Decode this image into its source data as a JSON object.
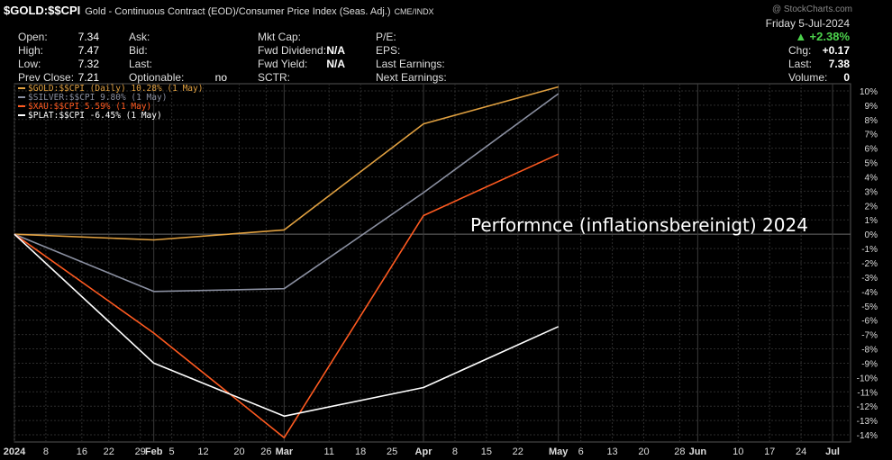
{
  "header": {
    "symbol": "$GOLD:$$CPI",
    "description": "Gold - Continuous Contract (EOD)/Consumer Price Index (Seas. Adj.)",
    "exchange": "CME/INDX",
    "watermark": "@ StockCharts.com",
    "date": "Friday  5-Jul-2024",
    "change_pct": "+2.38%",
    "stats": {
      "open": {
        "label": "Open:",
        "value": "7.34"
      },
      "high": {
        "label": "High:",
        "value": "7.47"
      },
      "low": {
        "label": "Low:",
        "value": "7.32"
      },
      "prev_close": {
        "label": "Prev Close:",
        "value": "7.21"
      },
      "ask": {
        "label": "Ask:",
        "value": ""
      },
      "bid": {
        "label": "Bid:",
        "value": ""
      },
      "last_q": {
        "label": "Last:",
        "value": ""
      },
      "optionable": {
        "label": "Optionable:",
        "value": "no"
      },
      "mkt_cap": {
        "label": "Mkt Cap:",
        "value": ""
      },
      "fwd_div": {
        "label": "Fwd Dividend:",
        "value": "N/A"
      },
      "fwd_yield": {
        "label": "Fwd Yield:",
        "value": "N/A"
      },
      "sctr": {
        "label": "SCTR:",
        "value": ""
      },
      "pe": {
        "label": "P/E:",
        "value": ""
      },
      "eps": {
        "label": "EPS:",
        "value": ""
      },
      "last_earn": {
        "label": "Last Earnings:",
        "value": ""
      },
      "next_earn": {
        "label": "Next Earnings:",
        "value": ""
      },
      "chg": {
        "label": "Chg:",
        "value": "+0.17"
      },
      "last": {
        "label": "Last:",
        "value": "7.38"
      },
      "volume": {
        "label": "Volume:",
        "value": "0"
      }
    }
  },
  "chart_data": {
    "type": "line",
    "title": "Performnce (inflationsbereinigt) 2024",
    "x": [
      "2024-01-01",
      "2024-02-01",
      "2024-03-01",
      "2024-04-01",
      "2024-05-01"
    ],
    "series": [
      {
        "name": "$GOLD:$$CPI (Daily) 10.28% (1 May)",
        "color": "#e0a040",
        "values": [
          0,
          -0.4,
          0.3,
          7.7,
          10.28
        ]
      },
      {
        "name": "$SILVER:$$CPI 9.80% (1 May)",
        "color": "#8a8fa0",
        "values": [
          0,
          -4.0,
          -3.8,
          2.9,
          9.8
        ]
      },
      {
        "name": "$XAU:$$CPI 5.59% (1 May)",
        "color": "#ff5a20",
        "values": [
          0,
          -6.9,
          -14.2,
          1.3,
          5.59
        ]
      },
      {
        "name": "$PLAT:$$CPI -6.45% (1 May)",
        "color": "#ffffff",
        "values": [
          0,
          -9.0,
          -12.7,
          -10.7,
          -6.45
        ]
      }
    ],
    "ylim": [
      -14.5,
      10.5
    ],
    "y_ticks": [
      "10%",
      "9%",
      "8%",
      "7%",
      "6%",
      "5%",
      "4%",
      "3%",
      "2%",
      "1%",
      "0%",
      "-1%",
      "-2%",
      "-3%",
      "-4%",
      "-5%",
      "-6%",
      "-7%",
      "-8%",
      "-9%",
      "-10%",
      "-11%",
      "-12%",
      "-13%",
      "-14%"
    ],
    "xlim": [
      "2024-01-01",
      "2024-07-05"
    ],
    "x_ticks": [
      {
        "label": "2024",
        "date": "2024-01-01",
        "bold": true
      },
      {
        "label": "8",
        "date": "2024-01-08"
      },
      {
        "label": "16",
        "date": "2024-01-16"
      },
      {
        "label": "22",
        "date": "2024-01-22"
      },
      {
        "label": "29",
        "date": "2024-01-29"
      },
      {
        "label": "Feb",
        "date": "2024-02-01",
        "bold": true
      },
      {
        "label": "5",
        "date": "2024-02-05"
      },
      {
        "label": "12",
        "date": "2024-02-12"
      },
      {
        "label": "20",
        "date": "2024-02-20"
      },
      {
        "label": "26",
        "date": "2024-02-26"
      },
      {
        "label": "Mar",
        "date": "2024-03-01",
        "bold": true
      },
      {
        "label": "11",
        "date": "2024-03-11"
      },
      {
        "label": "18",
        "date": "2024-03-18"
      },
      {
        "label": "25",
        "date": "2024-03-25"
      },
      {
        "label": "Apr",
        "date": "2024-04-01",
        "bold": true
      },
      {
        "label": "8",
        "date": "2024-04-08"
      },
      {
        "label": "15",
        "date": "2024-04-15"
      },
      {
        "label": "22",
        "date": "2024-04-22"
      },
      {
        "label": "May",
        "date": "2024-05-01",
        "bold": true
      },
      {
        "label": "6",
        "date": "2024-05-06"
      },
      {
        "label": "13",
        "date": "2024-05-13"
      },
      {
        "label": "20",
        "date": "2024-05-20"
      },
      {
        "label": "28",
        "date": "2024-05-28"
      },
      {
        "label": "Jun",
        "date": "2024-06-01",
        "bold": true
      },
      {
        "label": "10",
        "date": "2024-06-10"
      },
      {
        "label": "17",
        "date": "2024-06-17"
      },
      {
        "label": "24",
        "date": "2024-06-24"
      },
      {
        "label": "Jul",
        "date": "2024-07-01",
        "bold": true
      }
    ],
    "grid": true,
    "legend": "top-left"
  }
}
